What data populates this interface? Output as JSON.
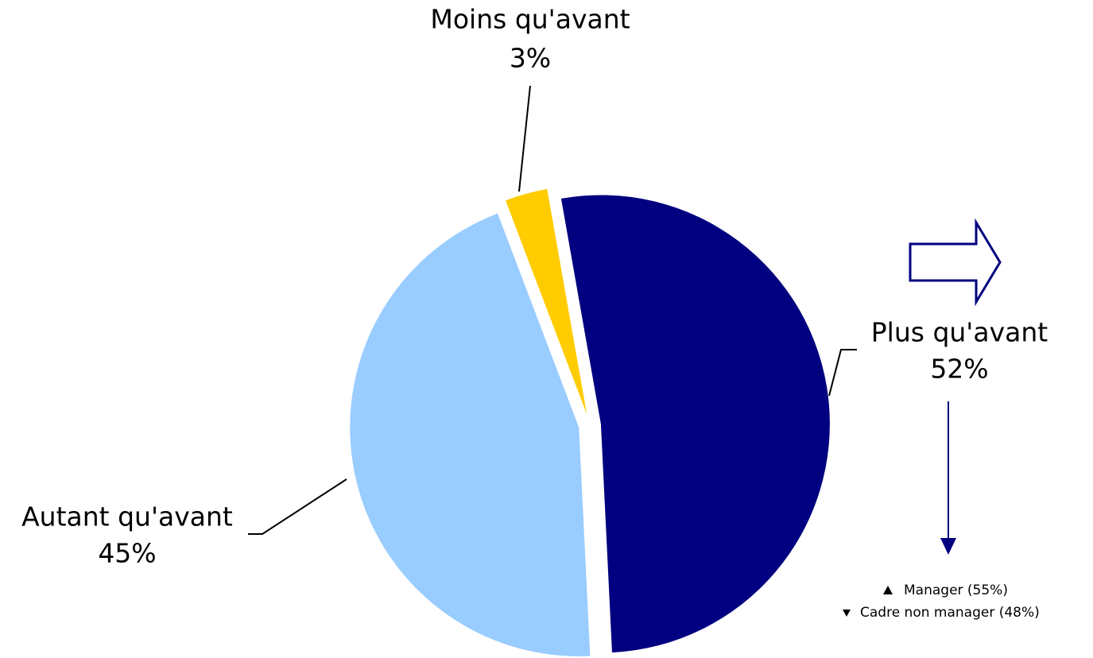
{
  "chart_data": {
    "type": "pie",
    "categories": [
      "Plus qu'avant",
      "Autant qu'avant",
      "Moins qu'avant"
    ],
    "values": [
      52,
      45,
      3
    ],
    "value_labels": [
      "52%",
      "45%",
      "3%"
    ],
    "colors": [
      "#000080",
      "#99ccff",
      "#ffcc00"
    ],
    "annotations": [
      "Manager (55%)",
      "Cadre non manager (48%)"
    ]
  }
}
